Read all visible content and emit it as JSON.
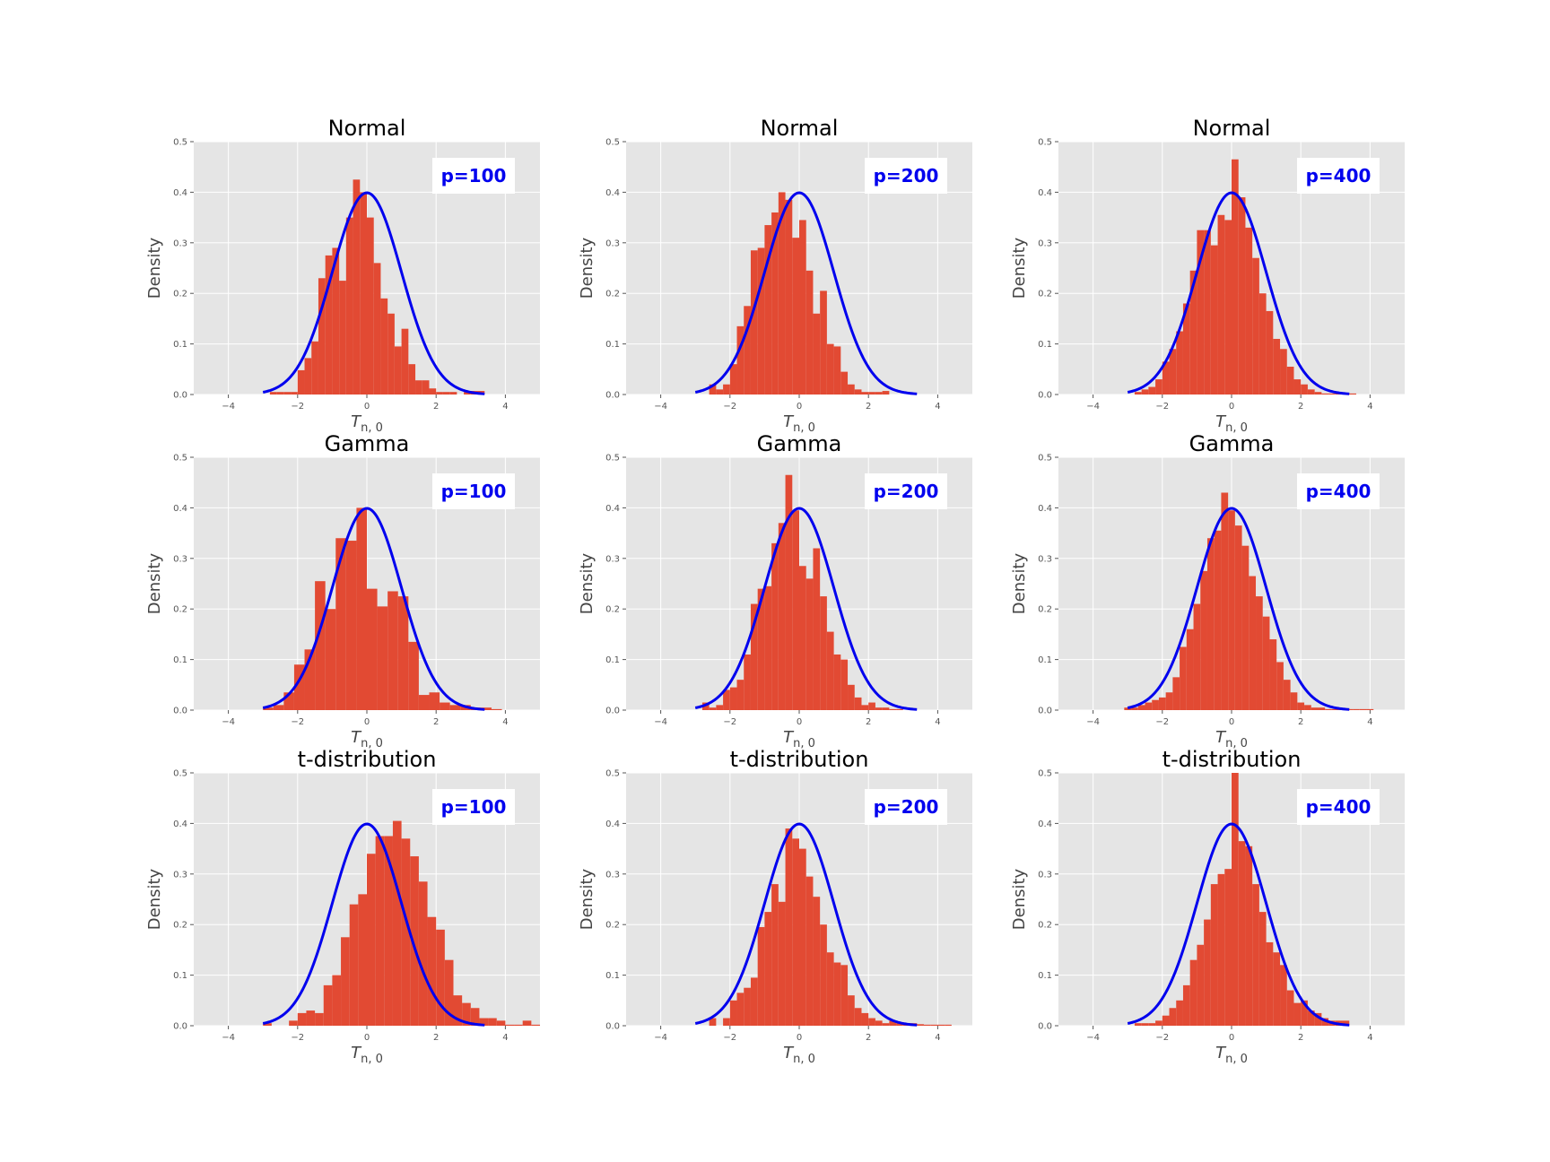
{
  "colors": {
    "hist": "#E24A33",
    "curve": "#0000EE",
    "panel_bg": "#E5E5E5",
    "grid": "#FFFFFF",
    "badge_text": "#0000EE",
    "badge_bg": "#FFFFFF"
  },
  "chart_data": [
    {
      "type": "bar",
      "title": "Normal",
      "annotation": "p=100",
      "xlabel": "T_{n,0}",
      "ylabel": "Density",
      "xlim": [
        -5,
        5
      ],
      "ylim": [
        0,
        0.5
      ],
      "xticks": [
        -4,
        -2,
        0,
        2,
        4
      ],
      "xtick_labels": [
        "−4",
        "−2",
        "0",
        "2",
        "4"
      ],
      "yticks": [
        0,
        0.1,
        0.2,
        0.3,
        0.4,
        0.5
      ],
      "ytick_labels": [
        "0.0",
        "0.1",
        "0.2",
        "0.3",
        "0.4",
        "0.5"
      ],
      "grid": true,
      "bin_edges_start": -3.0,
      "bin_width": 0.2,
      "values": [
        0,
        0.005,
        0.005,
        0.005,
        0.005,
        0.048,
        0.072,
        0.105,
        0.23,
        0.275,
        0.29,
        0.225,
        0.35,
        0.425,
        0.4,
        0.35,
        0.26,
        0.19,
        0.16,
        0.095,
        0.13,
        0.06,
        0.028,
        0.028,
        0.012,
        0.005,
        0.005,
        0.005,
        0.0,
        0.005,
        0.007,
        0.007
      ],
      "curve": "standard-normal-pdf"
    },
    {
      "type": "bar",
      "title": "Normal",
      "annotation": "p=200",
      "xlabel": "T_{n,0}",
      "ylabel": "Density",
      "xlim": [
        -5,
        5
      ],
      "ylim": [
        0,
        0.5
      ],
      "xticks": [
        -4,
        -2,
        0,
        2,
        4
      ],
      "xtick_labels": [
        "−4",
        "−2",
        "0",
        "2",
        "4"
      ],
      "yticks": [
        0,
        0.1,
        0.2,
        0.3,
        0.4,
        0.5
      ],
      "ytick_labels": [
        "0.0",
        "0.1",
        "0.2",
        "0.3",
        "0.4",
        "0.5"
      ],
      "grid": true,
      "bin_edges_start": -2.6,
      "bin_width": 0.2,
      "values": [
        0.02,
        0.01,
        0.02,
        0.06,
        0.135,
        0.175,
        0.285,
        0.29,
        0.335,
        0.36,
        0.4,
        0.385,
        0.31,
        0.345,
        0.245,
        0.16,
        0.205,
        0.1,
        0.095,
        0.045,
        0.02,
        0.01,
        0.005,
        0.005,
        0.005,
        0.007
      ],
      "curve": "standard-normal-pdf"
    },
    {
      "type": "bar",
      "title": "Normal",
      "annotation": "p=400",
      "xlabel": "T_{n,0}",
      "ylabel": "Density",
      "xlim": [
        -5,
        5
      ],
      "ylim": [
        0,
        0.5
      ],
      "xticks": [
        -4,
        -2,
        0,
        2,
        4
      ],
      "xtick_labels": [
        "−4",
        "−2",
        "0",
        "2",
        "4"
      ],
      "yticks": [
        0,
        0.1,
        0.2,
        0.3,
        0.4,
        0.5
      ],
      "ytick_labels": [
        "0.0",
        "0.1",
        "0.2",
        "0.3",
        "0.4",
        "0.5"
      ],
      "grid": true,
      "bin_edges_start": -2.8,
      "bin_width": 0.2,
      "values": [
        0.005,
        0.01,
        0.015,
        0.03,
        0.065,
        0.09,
        0.125,
        0.18,
        0.245,
        0.325,
        0.325,
        0.295,
        0.355,
        0.345,
        0.465,
        0.39,
        0.33,
        0.27,
        0.2,
        0.165,
        0.11,
        0.09,
        0.055,
        0.03,
        0.02,
        0.01,
        0.005,
        0.002,
        0.002,
        0.002,
        0.002,
        0.002
      ],
      "curve": "standard-normal-pdf"
    },
    {
      "type": "bar",
      "title": "Gamma",
      "annotation": "p=100",
      "xlabel": "T_{n,0}",
      "ylabel": "Density",
      "xlim": [
        -5,
        5
      ],
      "ylim": [
        0,
        0.5
      ],
      "xticks": [
        -4,
        -2,
        0,
        2,
        4
      ],
      "xtick_labels": [
        "−4",
        "−2",
        "0",
        "2",
        "4"
      ],
      "yticks": [
        0,
        0.1,
        0.2,
        0.3,
        0.4,
        0.5
      ],
      "ytick_labels": [
        "0.0",
        "0.1",
        "0.2",
        "0.3",
        "0.4",
        "0.5"
      ],
      "grid": true,
      "bin_edges_start": -3.0,
      "bin_width": 0.3,
      "values": [
        0.005,
        0.01,
        0.035,
        0.09,
        0.12,
        0.255,
        0.2,
        0.34,
        0.335,
        0.4,
        0.24,
        0.205,
        0.235,
        0.225,
        0.135,
        0.03,
        0.035,
        0.015,
        0.01,
        0.01,
        0.005,
        0.005,
        0.002
      ],
      "curve": "standard-normal-pdf"
    },
    {
      "type": "bar",
      "title": "Gamma",
      "annotation": "p=200",
      "xlabel": "T_{n,0}",
      "ylabel": "Density",
      "xlim": [
        -5,
        5
      ],
      "ylim": [
        0,
        0.5
      ],
      "xticks": [
        -4,
        -2,
        0,
        2,
        4
      ],
      "xtick_labels": [
        "−4",
        "−2",
        "0",
        "2",
        "4"
      ],
      "yticks": [
        0,
        0.1,
        0.2,
        0.3,
        0.4,
        0.5
      ],
      "ytick_labels": [
        "0.0",
        "0.1",
        "0.2",
        "0.3",
        "0.4",
        "0.5"
      ],
      "grid": true,
      "bin_edges_start": -2.8,
      "bin_width": 0.2,
      "values": [
        0.015,
        0.005,
        0.01,
        0.04,
        0.045,
        0.06,
        0.11,
        0.21,
        0.24,
        0.245,
        0.33,
        0.37,
        0.465,
        0.395,
        0.285,
        0.26,
        0.32,
        0.225,
        0.155,
        0.11,
        0.1,
        0.05,
        0.025,
        0.01,
        0.015,
        0.005,
        0.005,
        0.002,
        0.002
      ],
      "curve": "standard-normal-pdf"
    },
    {
      "type": "bar",
      "title": "Gamma",
      "annotation": "p=400",
      "xlabel": "T_{n,0}",
      "ylabel": "Density",
      "xlim": [
        -5,
        5
      ],
      "ylim": [
        0,
        0.5
      ],
      "xticks": [
        -4,
        -2,
        0,
        2,
        4
      ],
      "xtick_labels": [
        "−4",
        "−2",
        "0",
        "2",
        "4"
      ],
      "yticks": [
        0,
        0.1,
        0.2,
        0.3,
        0.4,
        0.5
      ],
      "ytick_labels": [
        "0.0",
        "0.1",
        "0.2",
        "0.3",
        "0.4",
        "0.5"
      ],
      "grid": true,
      "bin_edges_start": -3.1,
      "bin_width": 0.2,
      "values": [
        0.005,
        0.005,
        0.01,
        0.015,
        0.02,
        0.025,
        0.035,
        0.065,
        0.125,
        0.16,
        0.21,
        0.275,
        0.34,
        0.355,
        0.43,
        0.395,
        0.365,
        0.325,
        0.265,
        0.225,
        0.185,
        0.14,
        0.095,
        0.06,
        0.035,
        0.015,
        0.01,
        0.005,
        0.005,
        0.002,
        0.002,
        0.002,
        0.002,
        0.002,
        0.002,
        0.002
      ],
      "curve": "standard-normal-pdf"
    },
    {
      "type": "bar",
      "title": "t-distribution",
      "annotation": "p=100",
      "xlabel": "T_{n,0}",
      "ylabel": "Density",
      "xlim": [
        -5,
        5
      ],
      "ylim": [
        0,
        0.5
      ],
      "xticks": [
        -4,
        -2,
        0,
        2,
        4
      ],
      "xtick_labels": [
        "−4",
        "−2",
        "0",
        "2",
        "4"
      ],
      "yticks": [
        0,
        0.1,
        0.2,
        0.3,
        0.4,
        0.5
      ],
      "ytick_labels": [
        "0.0",
        "0.1",
        "0.2",
        "0.3",
        "0.4",
        "0.5"
      ],
      "grid": true,
      "bin_edges_start": -3.0,
      "bin_width": 0.25,
      "values": [
        0.005,
        0.0,
        0.0,
        0.01,
        0.025,
        0.03,
        0.025,
        0.08,
        0.1,
        0.175,
        0.24,
        0.26,
        0.34,
        0.375,
        0.375,
        0.405,
        0.37,
        0.335,
        0.285,
        0.215,
        0.19,
        0.13,
        0.06,
        0.045,
        0.035,
        0.015,
        0.015,
        0.01,
        0.002,
        0.002,
        0.01,
        0.002
      ],
      "curve": "standard-normal-pdf"
    },
    {
      "type": "bar",
      "title": "t-distribution",
      "annotation": "p=200",
      "xlabel": "T_{n,0}",
      "ylabel": "Density",
      "xlim": [
        -5,
        5
      ],
      "ylim": [
        0,
        0.5
      ],
      "xticks": [
        -4,
        -2,
        0,
        2,
        4
      ],
      "xtick_labels": [
        "−4",
        "−2",
        "0",
        "2",
        "4"
      ],
      "yticks": [
        0,
        0.1,
        0.2,
        0.3,
        0.4,
        0.5
      ],
      "ytick_labels": [
        "0.0",
        "0.1",
        "0.2",
        "0.3",
        "0.4",
        "0.5"
      ],
      "grid": true,
      "bin_edges_start": -2.6,
      "bin_width": 0.2,
      "values": [
        0.015,
        0.0,
        0.015,
        0.05,
        0.065,
        0.075,
        0.095,
        0.195,
        0.225,
        0.28,
        0.245,
        0.39,
        0.37,
        0.35,
        0.295,
        0.255,
        0.2,
        0.145,
        0.125,
        0.12,
        0.06,
        0.035,
        0.025,
        0.015,
        0.01,
        0.005,
        0.01,
        0.005,
        0.005,
        0.005,
        0.003,
        0.002,
        0.002,
        0.002,
        0.002
      ],
      "curve": "standard-normal-pdf"
    },
    {
      "type": "bar",
      "title": "t-distribution",
      "annotation": "p=400",
      "xlabel": "T_{n,0}",
      "ylabel": "Density",
      "xlim": [
        -5,
        5
      ],
      "ylim": [
        0,
        0.5
      ],
      "xticks": [
        -4,
        -2,
        0,
        2,
        4
      ],
      "xtick_labels": [
        "−4",
        "−2",
        "0",
        "2",
        "4"
      ],
      "yticks": [
        0,
        0.1,
        0.2,
        0.3,
        0.4,
        0.5
      ],
      "ytick_labels": [
        "0.0",
        "0.1",
        "0.2",
        "0.3",
        "0.4",
        "0.5"
      ],
      "grid": true,
      "bin_edges_start": -2.8,
      "bin_width": 0.2,
      "values": [
        0.005,
        0.005,
        0.005,
        0.01,
        0.02,
        0.035,
        0.05,
        0.08,
        0.13,
        0.16,
        0.21,
        0.28,
        0.3,
        0.31,
        0.5,
        0.365,
        0.355,
        0.28,
        0.225,
        0.165,
        0.145,
        0.12,
        0.07,
        0.045,
        0.05,
        0.03,
        0.025,
        0.015,
        0.01,
        0.01,
        0.01
      ],
      "curve": "standard-normal-pdf"
    }
  ]
}
